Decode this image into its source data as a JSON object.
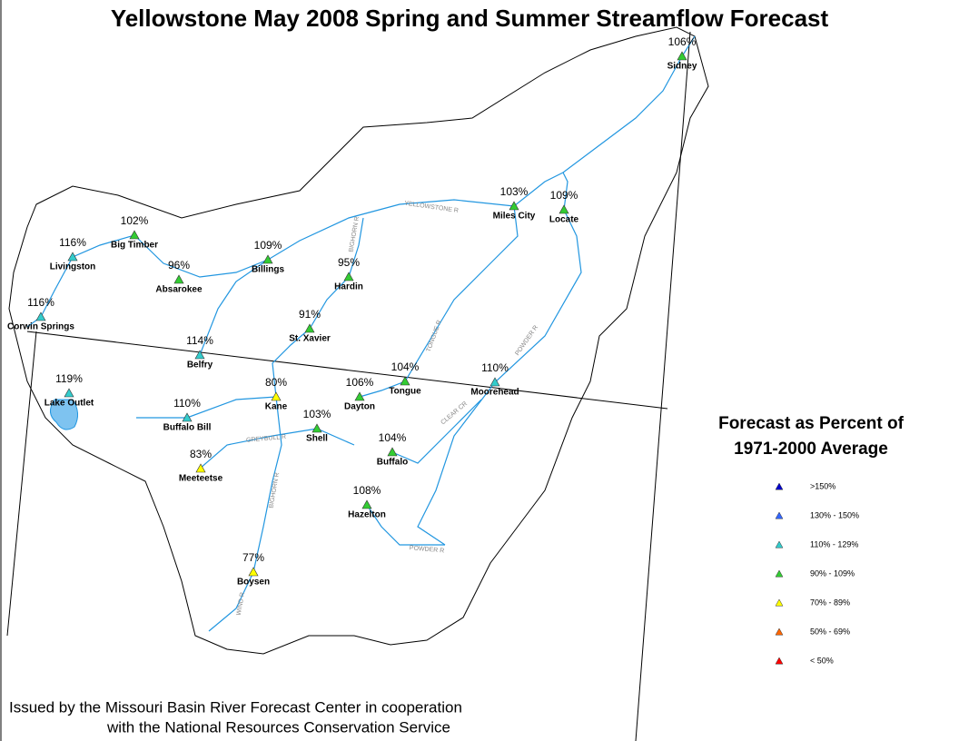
{
  "header": {
    "title": "Yellowstone May 2008 Spring and Summer Streamflow Forecast"
  },
  "stations": [
    {
      "name": "Sidney",
      "label": "106%",
      "color": "#33cc33"
    },
    {
      "name": "Miles City",
      "label": "103%",
      "color": "#33cc33"
    },
    {
      "name": "Locate",
      "label": "109%",
      "color": "#33cc33"
    },
    {
      "name": "Big Timber",
      "label": "102%",
      "color": "#33cc33"
    },
    {
      "name": "Livingston",
      "label": "116%",
      "color": "#33cccc"
    },
    {
      "name": "Billings",
      "label": "109%",
      "color": "#33cc33"
    },
    {
      "name": "Absarokee",
      "label": "96%",
      "color": "#33cc33"
    },
    {
      "name": "Hardin",
      "label": "95%",
      "color": "#33cc33"
    },
    {
      "name": "Corwin Springs",
      "label": "116%",
      "color": "#33cccc"
    },
    {
      "name": "St. Xavier",
      "label": "91%",
      "color": "#33cc33"
    },
    {
      "name": "Belfry",
      "label": "114%",
      "color": "#33cccc"
    },
    {
      "name": "Lake Outlet",
      "label": "119%",
      "color": "#33cccc"
    },
    {
      "name": "Kane",
      "label": "80%",
      "color": "#ffff00"
    },
    {
      "name": "Dayton",
      "label": "106%",
      "color": "#33cc33"
    },
    {
      "name": "Tongue",
      "label": "104%",
      "color": "#33cc33"
    },
    {
      "name": "Moorehead",
      "label": "110%",
      "color": "#33cccc"
    },
    {
      "name": "Buffalo Bill",
      "label": "110%",
      "color": "#33cccc"
    },
    {
      "name": "Shell",
      "label": "103%",
      "color": "#33cc33"
    },
    {
      "name": "Buffalo",
      "label": "104%",
      "color": "#33cc33"
    },
    {
      "name": "Meeteetse",
      "label": "83%",
      "color": "#ffff00"
    },
    {
      "name": "Hazelton",
      "label": "108%",
      "color": "#33cc33"
    },
    {
      "name": "Boysen",
      "label": "77%",
      "color": "#ffff00"
    }
  ],
  "rivers": [
    "YELLOWSTONE R",
    "BIGHORN R",
    "TONGUE R",
    "POWDER R",
    "CLEAR CR",
    "GREYBULL R",
    "BIGHORN R",
    "POWDER R",
    "WIND R"
  ],
  "legend": {
    "title_lines": [
      "Forecast as Percent of",
      "1971-2000 Average"
    ],
    "items": [
      {
        "label": ">150%",
        "color": "#0000cc"
      },
      {
        "label": "130% - 150%",
        "color": "#3366ff"
      },
      {
        "label": "110% - 129%",
        "color": "#33cccc"
      },
      {
        "label": "90% - 109%",
        "color": "#33cc33"
      },
      {
        "label": "70% - 89%",
        "color": "#ffff00"
      },
      {
        "label": "50% - 69%",
        "color": "#ff6600"
      },
      {
        "label": "< 50%",
        "color": "#ff0000"
      }
    ]
  },
  "footer": {
    "lines": [
      "Issued by the Missouri Basin River Forecast Center in cooperation",
      "with the National Resources Conservation Service"
    ]
  }
}
